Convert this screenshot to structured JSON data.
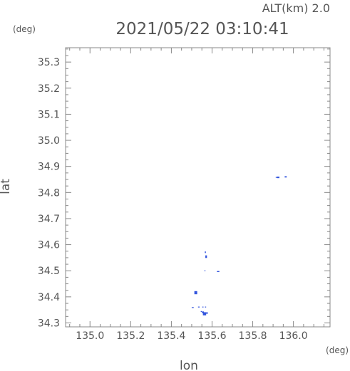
{
  "chart_data": {
    "type": "scatter",
    "title": "2021/05/22 03:10:41",
    "subtitle": "ALT(km) 2.0",
    "xlabel": "lon",
    "ylabel": "lat",
    "x_unit": "(deg)",
    "y_unit": "(deg)",
    "xlim": [
      134.88,
      136.18
    ],
    "ylim": [
      34.285,
      35.355
    ],
    "x_ticks": [
      135.0,
      135.2,
      135.4,
      135.6,
      135.8,
      136.0
    ],
    "x_tick_labels": [
      "135.0",
      "135.2",
      "135.4",
      "135.6",
      "135.8",
      "136.0"
    ],
    "y_ticks": [
      34.3,
      34.4,
      34.5,
      34.6,
      34.7,
      34.8,
      34.9,
      35.0,
      35.1,
      35.2,
      35.3
    ],
    "y_tick_labels": [
      "34.3",
      "34.4",
      "34.5",
      "34.6",
      "34.7",
      "34.8",
      "34.9",
      "35.0",
      "35.1",
      "35.2",
      "35.3"
    ],
    "grid": false,
    "marker_color": "#3355dd",
    "axis_color": "#888888",
    "points": [
      {
        "x": 135.916,
        "y": 34.858,
        "w": 0.006,
        "h": 0.002
      },
      {
        "x": 135.925,
        "y": 34.858,
        "w": 0.012,
        "h": 0.006
      },
      {
        "x": 135.962,
        "y": 34.86,
        "w": 0.01,
        "h": 0.005
      },
      {
        "x": 135.567,
        "y": 34.571,
        "w": 0.005,
        "h": 0.006
      },
      {
        "x": 135.571,
        "y": 34.554,
        "w": 0.008,
        "h": 0.01
      },
      {
        "x": 135.565,
        "y": 34.5,
        "w": 0.004,
        "h": 0.002
      },
      {
        "x": 135.63,
        "y": 34.497,
        "w": 0.012,
        "h": 0.004
      },
      {
        "x": 135.52,
        "y": 34.416,
        "w": 0.014,
        "h": 0.012
      },
      {
        "x": 135.505,
        "y": 34.359,
        "w": 0.01,
        "h": 0.002
      },
      {
        "x": 135.535,
        "y": 34.361,
        "w": 0.008,
        "h": 0.002
      },
      {
        "x": 135.555,
        "y": 34.361,
        "w": 0.006,
        "h": 0.003
      },
      {
        "x": 135.568,
        "y": 34.361,
        "w": 0.006,
        "h": 0.003
      },
      {
        "x": 135.555,
        "y": 34.341,
        "w": 0.01,
        "h": 0.006
      },
      {
        "x": 135.563,
        "y": 34.335,
        "w": 0.016,
        "h": 0.012
      },
      {
        "x": 135.575,
        "y": 34.338,
        "w": 0.008,
        "h": 0.006
      },
      {
        "x": 135.547,
        "y": 34.344,
        "w": 0.004,
        "h": 0.002
      }
    ]
  }
}
